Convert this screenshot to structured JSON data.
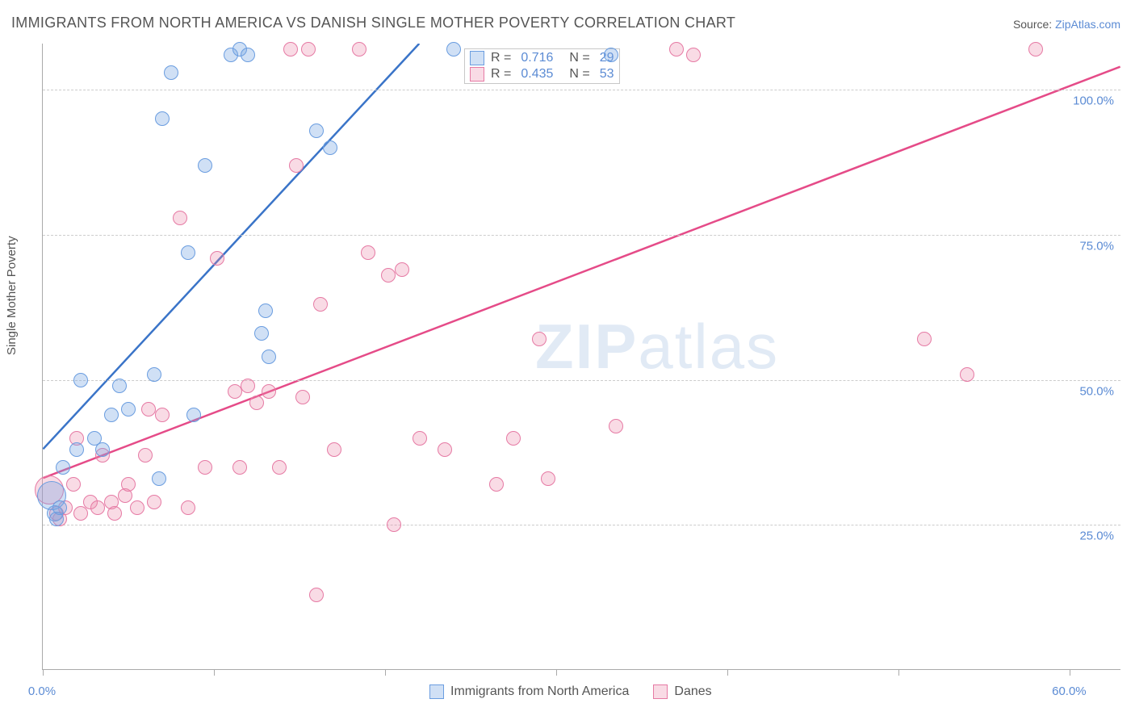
{
  "title": "IMMIGRANTS FROM NORTH AMERICA VS DANISH SINGLE MOTHER POVERTY CORRELATION CHART",
  "source": {
    "label": "Source: ",
    "link": "ZipAtlas.com"
  },
  "watermark": {
    "zip": "ZIP",
    "atlas": "atlas"
  },
  "chart": {
    "type": "scatter",
    "ylabel": "Single Mother Poverty",
    "xlim": [
      0,
      63
    ],
    "ylim": [
      0,
      108
    ],
    "x_ticks": [
      0,
      10,
      20,
      30,
      40,
      50,
      60
    ],
    "x_tick_labels": {
      "0": "0.0%",
      "60": "60.0%"
    },
    "y_grid": [
      25,
      50,
      75,
      100
    ],
    "y_tick_labels": {
      "25": "25.0%",
      "50": "50.0%",
      "75": "75.0%",
      "100": "100.0%"
    },
    "grid_color": "#cccccc",
    "axis_color": "#aaaaaa",
    "background_color": "#ffffff",
    "label_color": "#5b8bd4",
    "series": {
      "blue": {
        "label": "Immigrants from North America",
        "fill": "rgba(120,165,225,0.35)",
        "stroke": "#6a9de0",
        "line_color": "#3a74c8",
        "line_width": 2.5,
        "trend": {
          "x1": 0,
          "y1": 38,
          "x2": 22,
          "y2": 108
        },
        "R": "0.716",
        "N": "29",
        "marker_radius": 9,
        "points": [
          {
            "x": 0.5,
            "y": 30,
            "r": 18
          },
          {
            "x": 0.7,
            "y": 27,
            "r": 10
          },
          {
            "x": 0.8,
            "y": 26
          },
          {
            "x": 1.0,
            "y": 28
          },
          {
            "x": 1.2,
            "y": 35
          },
          {
            "x": 2.0,
            "y": 38
          },
          {
            "x": 2.2,
            "y": 50
          },
          {
            "x": 3.0,
            "y": 40
          },
          {
            "x": 3.5,
            "y": 38
          },
          {
            "x": 4.0,
            "y": 44
          },
          {
            "x": 4.5,
            "y": 49
          },
          {
            "x": 5.0,
            "y": 45
          },
          {
            "x": 6.5,
            "y": 51
          },
          {
            "x": 6.8,
            "y": 33
          },
          {
            "x": 7.0,
            "y": 95
          },
          {
            "x": 7.5,
            "y": 103
          },
          {
            "x": 8.5,
            "y": 72
          },
          {
            "x": 8.8,
            "y": 44
          },
          {
            "x": 9.5,
            "y": 87
          },
          {
            "x": 11.0,
            "y": 106
          },
          {
            "x": 11.5,
            "y": 107
          },
          {
            "x": 12.0,
            "y": 106
          },
          {
            "x": 12.8,
            "y": 58
          },
          {
            "x": 13.0,
            "y": 62
          },
          {
            "x": 13.2,
            "y": 54
          },
          {
            "x": 16.0,
            "y": 93
          },
          {
            "x": 16.8,
            "y": 90
          },
          {
            "x": 24.0,
            "y": 107
          },
          {
            "x": 33.2,
            "y": 106
          }
        ]
      },
      "pink": {
        "label": "Danes",
        "fill": "rgba(235,135,170,0.30)",
        "stroke": "#e67aa4",
        "line_color": "#e54b88",
        "line_width": 2.5,
        "trend": {
          "x1": 0,
          "y1": 33,
          "x2": 63,
          "y2": 104
        },
        "R": "0.435",
        "N": "53",
        "marker_radius": 9,
        "points": [
          {
            "x": 0.4,
            "y": 31,
            "r": 18
          },
          {
            "x": 0.8,
            "y": 27
          },
          {
            "x": 1.0,
            "y": 26
          },
          {
            "x": 1.3,
            "y": 28
          },
          {
            "x": 1.8,
            "y": 32
          },
          {
            "x": 2.0,
            "y": 40
          },
          {
            "x": 2.2,
            "y": 27
          },
          {
            "x": 2.8,
            "y": 29
          },
          {
            "x": 3.2,
            "y": 28
          },
          {
            "x": 3.5,
            "y": 37
          },
          {
            "x": 4.0,
            "y": 29
          },
          {
            "x": 4.2,
            "y": 27
          },
          {
            "x": 4.8,
            "y": 30
          },
          {
            "x": 5.0,
            "y": 32
          },
          {
            "x": 5.5,
            "y": 28
          },
          {
            "x": 6.0,
            "y": 37
          },
          {
            "x": 6.2,
            "y": 45
          },
          {
            "x": 6.5,
            "y": 29
          },
          {
            "x": 7.0,
            "y": 44
          },
          {
            "x": 8.0,
            "y": 78
          },
          {
            "x": 8.5,
            "y": 28
          },
          {
            "x": 9.5,
            "y": 35
          },
          {
            "x": 10.2,
            "y": 71
          },
          {
            "x": 11.2,
            "y": 48
          },
          {
            "x": 11.5,
            "y": 35
          },
          {
            "x": 12.0,
            "y": 49
          },
          {
            "x": 12.5,
            "y": 46
          },
          {
            "x": 13.2,
            "y": 48
          },
          {
            "x": 13.8,
            "y": 35
          },
          {
            "x": 14.5,
            "y": 107
          },
          {
            "x": 14.8,
            "y": 87
          },
          {
            "x": 15.2,
            "y": 47
          },
          {
            "x": 15.5,
            "y": 107
          },
          {
            "x": 16.0,
            "y": 13
          },
          {
            "x": 16.2,
            "y": 63
          },
          {
            "x": 17.0,
            "y": 38
          },
          {
            "x": 18.5,
            "y": 107
          },
          {
            "x": 19.0,
            "y": 72
          },
          {
            "x": 20.2,
            "y": 68
          },
          {
            "x": 20.5,
            "y": 25
          },
          {
            "x": 21.0,
            "y": 69
          },
          {
            "x": 22.0,
            "y": 40
          },
          {
            "x": 23.5,
            "y": 38
          },
          {
            "x": 26.5,
            "y": 32
          },
          {
            "x": 27.5,
            "y": 40
          },
          {
            "x": 29.0,
            "y": 57
          },
          {
            "x": 29.5,
            "y": 33
          },
          {
            "x": 33.5,
            "y": 42
          },
          {
            "x": 37.0,
            "y": 107
          },
          {
            "x": 38.0,
            "y": 106
          },
          {
            "x": 51.5,
            "y": 57
          },
          {
            "x": 54.0,
            "y": 51
          },
          {
            "x": 58.0,
            "y": 107
          }
        ]
      }
    },
    "legend_top": {
      "R_label": "R =",
      "N_label": "N ="
    },
    "legend_bottom": {
      "blue": "Immigrants from North America",
      "pink": "Danes"
    }
  }
}
